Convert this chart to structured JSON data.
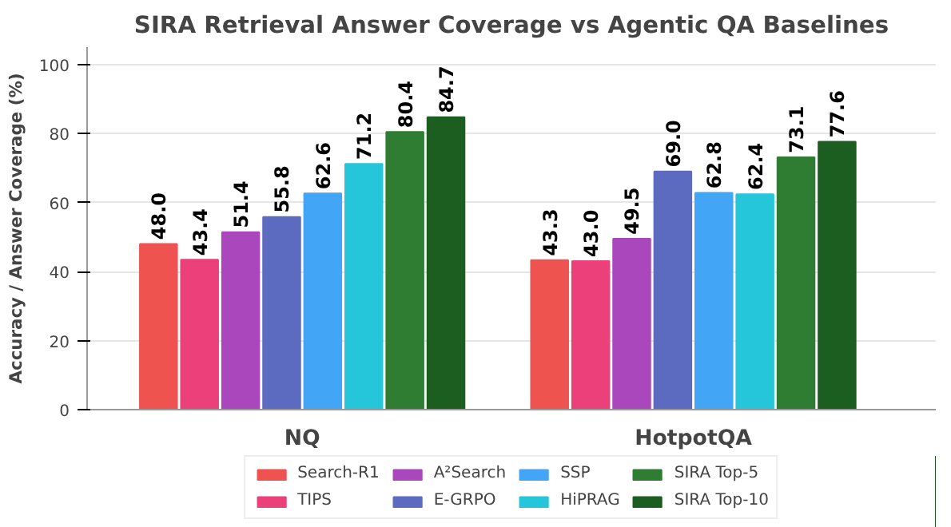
{
  "chart_data": {
    "type": "bar",
    "title": "SIRA Retrieval Answer Coverage vs Agentic QA Baselines",
    "ylabel": "Accuracy / Answer Coverage (%)",
    "categories": [
      "NQ",
      "HotpotQA"
    ],
    "series": [
      {
        "name": "Search-R1",
        "color": "#ef5350",
        "values": [
          48.0,
          43.3
        ],
        "value_labels": [
          "48.0",
          "43.3"
        ]
      },
      {
        "name": "TIPS",
        "color": "#ec407a",
        "values": [
          43.4,
          43.0
        ],
        "value_labels": [
          "43.4",
          "43.0"
        ]
      },
      {
        "name": "A²Search",
        "color": "#ab47bc",
        "values": [
          51.4,
          49.5
        ],
        "value_labels": [
          "51.4",
          "49.5"
        ]
      },
      {
        "name": "E-GRPO",
        "color": "#5c6bc0",
        "values": [
          55.8,
          69.0
        ],
        "value_labels": [
          "55.8",
          "69.0"
        ]
      },
      {
        "name": "SSP",
        "color": "#42a5f5",
        "values": [
          62.6,
          62.8
        ],
        "value_labels": [
          "62.6",
          "62.8"
        ]
      },
      {
        "name": "HiPRAG",
        "color": "#26c6da",
        "values": [
          71.2,
          62.4
        ],
        "value_labels": [
          "71.2",
          "62.4"
        ]
      },
      {
        "name": "SIRA Top-5",
        "color": "#2e7d32",
        "values": [
          80.4,
          73.1
        ],
        "value_labels": [
          "80.4",
          "73.1"
        ]
      },
      {
        "name": "SIRA Top-10",
        "color": "#1b5e20",
        "values": [
          84.7,
          77.6
        ],
        "value_labels": [
          "84.7",
          "77.6"
        ]
      }
    ],
    "ylim": [
      0,
      105
    ],
    "yticks": [
      0,
      20,
      40,
      60,
      80,
      100
    ],
    "grid": "y",
    "legend": "bottom"
  }
}
